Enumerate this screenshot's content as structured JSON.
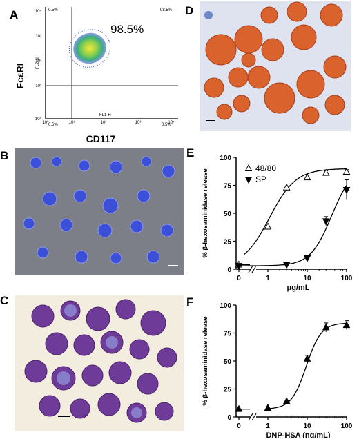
{
  "panels": {
    "A": {
      "label": "A",
      "ylabel": "FcεRI",
      "xlabel": "CD117",
      "percent": "98.5%",
      "corner_tl": "0.5%",
      "corner_tr": "98.5%",
      "corner_bl": "0.6%",
      "corner_br": "0.5%",
      "fl2": "FL2-H",
      "fl1": "FL1-H",
      "ticks_y": [
        "10⁰",
        "10¹",
        "10²",
        "10³",
        "10⁴"
      ],
      "ticks_x": [
        "10⁰",
        "10¹",
        "10²",
        "10³",
        "10⁴"
      ]
    },
    "B": {
      "label": "B"
    },
    "C": {
      "label": "C"
    },
    "D": {
      "label": "D"
    },
    "E": {
      "label": "E"
    },
    "F": {
      "label": "F"
    }
  },
  "colors": {
    "cd_blue": "#3a4fd0",
    "stain_purple": "#6f3b98",
    "stain_orange": "#d9622d",
    "flow_green": "#9ad14c"
  },
  "chart_data": [
    {
      "panel": "E",
      "type": "line",
      "ylabel": "% β-hexosaminidase release",
      "xlabel": "μg/mL",
      "x_scale": "log",
      "xticks": [
        "0",
        "1",
        "10",
        "100"
      ],
      "ylim": [
        0,
        100
      ],
      "yticks": [
        "0",
        "25",
        "50",
        "75",
        "100"
      ],
      "series": [
        {
          "name": "48/80",
          "marker": "open-triangle-up",
          "x": [
            0,
            1,
            3,
            10,
            30,
            100
          ],
          "y": [
            4,
            38,
            73,
            82,
            86,
            87
          ],
          "err": [
            0,
            0,
            0,
            0,
            2,
            2
          ]
        },
        {
          "name": "SP",
          "marker": "filled-triangle-down",
          "x": [
            0,
            3,
            10,
            30,
            100
          ],
          "y": [
            3,
            4,
            10,
            43,
            71
          ],
          "err": [
            0,
            0,
            0,
            4,
            9
          ]
        }
      ]
    },
    {
      "panel": "F",
      "type": "line",
      "ylabel": "% β-hexosaminidase release",
      "xlabel": "DNP-HSA (ng/mL)",
      "x_scale": "log",
      "xticks": [
        "0",
        "1",
        "10",
        "100"
      ],
      "ylim": [
        0,
        100
      ],
      "yticks": [
        "0",
        "25",
        "50",
        "75",
        "100"
      ],
      "series": [
        {
          "marker": "filled-triangle-up",
          "x": [
            0,
            1,
            3,
            10,
            30,
            100
          ],
          "y": [
            7,
            8,
            14,
            52,
            80,
            82
          ],
          "err": [
            0,
            0,
            0,
            3,
            4,
            4
          ]
        }
      ]
    }
  ]
}
